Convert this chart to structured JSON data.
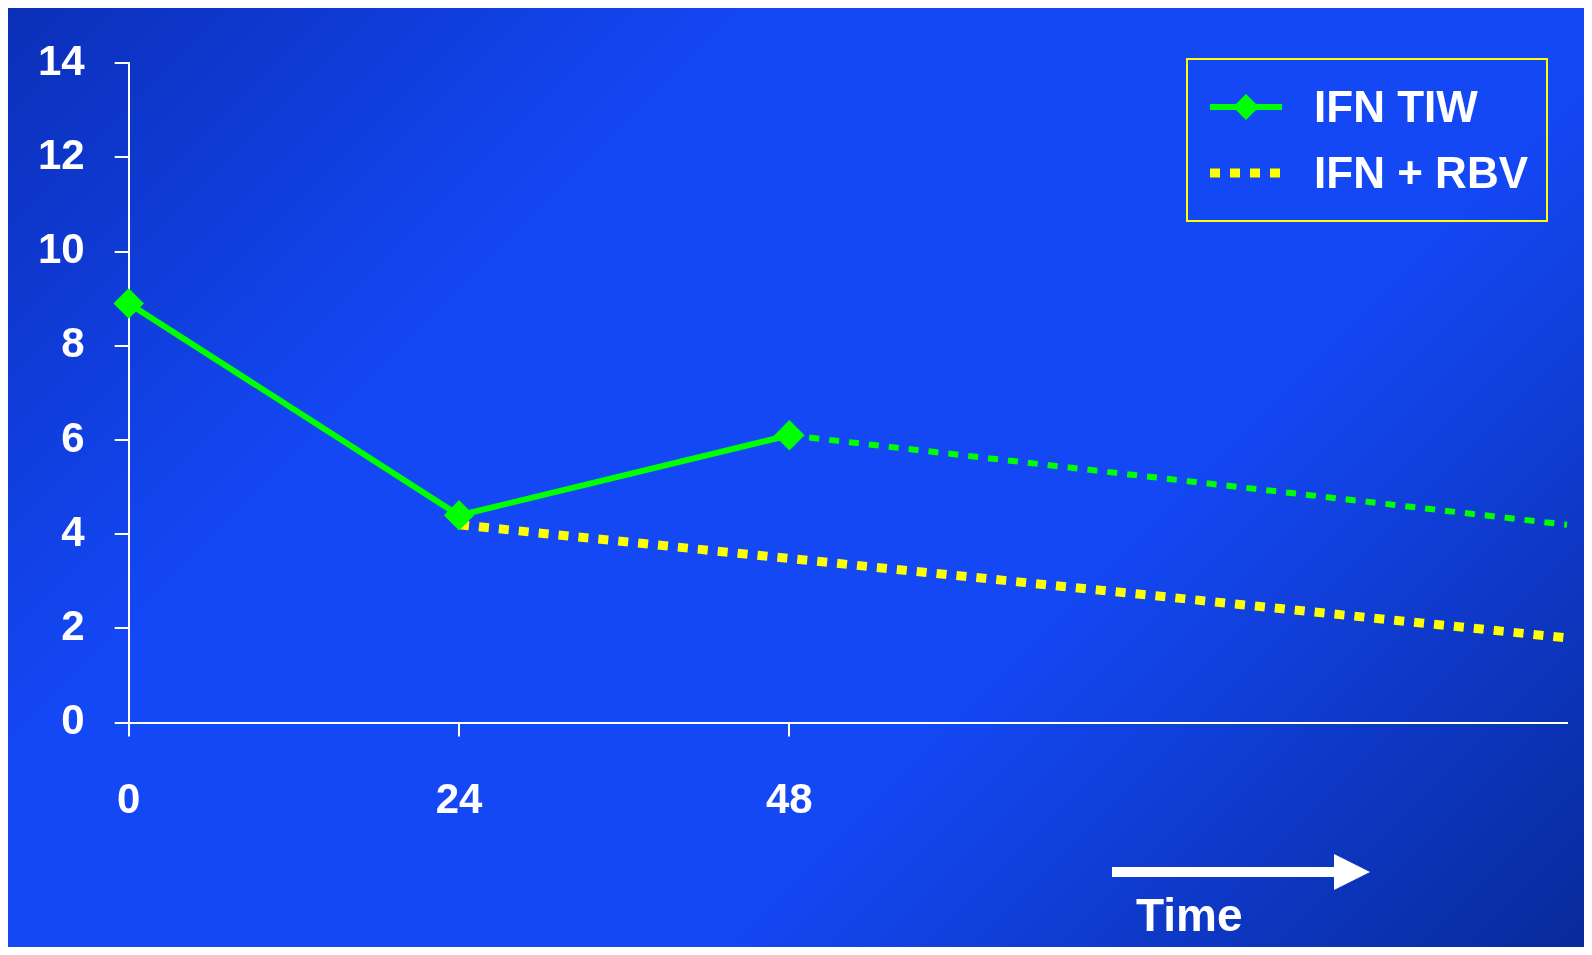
{
  "chart_data": {
    "type": "line",
    "xlabel": "Time",
    "xlim": [
      0,
      104.5
    ],
    "xticks": [
      0,
      24,
      48
    ],
    "ylim": [
      0,
      14
    ],
    "yticks": [
      0,
      2,
      4,
      6,
      8,
      10,
      12,
      14
    ],
    "grid": false,
    "legend": "top right",
    "series": [
      {
        "name": "IFN TIW",
        "color": "#00ff00",
        "x": [
          0,
          24,
          48
        ],
        "values": [
          8.9,
          4.4,
          6.1
        ],
        "marker": "diamond",
        "line_style": "solid"
      },
      {
        "color": "#00ff00",
        "x": [
          48,
          104.5
        ],
        "values": [
          6.1,
          4.2
        ],
        "marker": "none",
        "line_style": "dotted"
      },
      {
        "name": "IFN + RBV",
        "color": "#ffff00",
        "x": [
          24,
          104.5
        ],
        "values": [
          4.2,
          1.8
        ],
        "marker": "none",
        "line_style": "dotted"
      }
    ]
  }
}
